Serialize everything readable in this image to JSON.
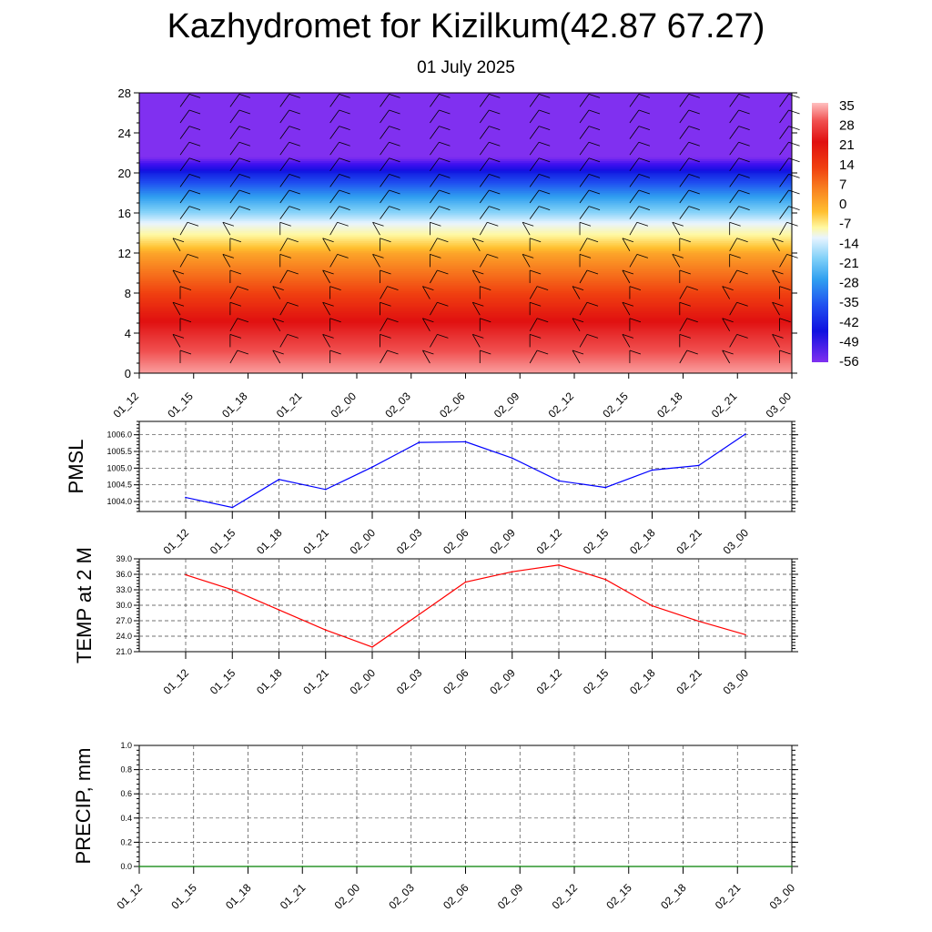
{
  "title": "Kazhydromet for Kizilkum(42.87 67.27)",
  "subtitle": "01 July 2025",
  "chart_data": [
    {
      "type": "heatmap",
      "description_label": "",
      "yticks": [
        "0",
        "4",
        "8",
        "12",
        "16",
        "20",
        "24",
        "28"
      ],
      "ylim": [
        0,
        28
      ],
      "x_ticks": [
        "01_12",
        "01_15",
        "01_18",
        "01_21",
        "02_00",
        "02_03",
        "02_06",
        "02_09",
        "02_12",
        "02_15",
        "02_18",
        "02_21",
        "03_00"
      ],
      "colorbar_labels": [
        "35",
        "28",
        "21",
        "14",
        "7",
        "0",
        "-7",
        "-14",
        "-21",
        "-28",
        "-35",
        "-42",
        "-49",
        "-56"
      ],
      "colorbar_colors": [
        "#ffc0c0",
        "#f05050",
        "#e01010",
        "#f04010",
        "#f88020",
        "#ffc030",
        "#fff8a0",
        "#e8f4ff",
        "#80d0f8",
        "#30a0f0",
        "#2050f0",
        "#1010e0",
        "#4010f0",
        "#8030f0"
      ],
      "temperature_profile": [
        {
          "height": 0,
          "temp": 33
        },
        {
          "height": 4,
          "temp": 24
        },
        {
          "height": 8,
          "temp": 14
        },
        {
          "height": 12,
          "temp": 3
        },
        {
          "height": 14,
          "temp": -8
        },
        {
          "height": 16,
          "temp": -20
        },
        {
          "height": 20,
          "temp": -40
        },
        {
          "height": 21.5,
          "temp": -55
        },
        {
          "height": 22.5,
          "temp": -60
        },
        {
          "height": 28,
          "temp": -62
        }
      ]
    },
    {
      "type": "line",
      "ylabel": "PMSL",
      "categories": [
        "01_12",
        "01_15",
        "01_18",
        "01_21",
        "02_00",
        "02_03",
        "02_06",
        "02_09",
        "02_12",
        "02_15",
        "02_18",
        "02_21",
        "03_00"
      ],
      "values": [
        1004.12,
        1003.82,
        1004.66,
        1004.36,
        1005.03,
        1005.77,
        1005.79,
        1005.3,
        1004.62,
        1004.42,
        1004.94,
        1005.08,
        1006.02
      ],
      "yticks": [
        "1004.0",
        "1004.5",
        "1005.0",
        "1005.5",
        "1006.0"
      ],
      "ylim": [
        1003.7,
        1006.4
      ],
      "color": "#0000ff",
      "grid": true
    },
    {
      "type": "line",
      "ylabel": "TEMP at 2 M",
      "categories": [
        "01_12",
        "01_15",
        "01_18",
        "01_21",
        "02_00",
        "02_03",
        "02_06",
        "02_09",
        "02_12",
        "02_15",
        "02_18",
        "02_21",
        "03_00"
      ],
      "values": [
        35.9,
        33.0,
        29.1,
        25.2,
        21.9,
        28.2,
        34.5,
        36.5,
        37.8,
        35.0,
        29.9,
        26.9,
        24.3
      ],
      "yticks": [
        "21.0",
        "24.0",
        "27.0",
        "30.0",
        "33.0",
        "36.0",
        "39.0"
      ],
      "ylim": [
        21,
        39
      ],
      "color": "#ff0000",
      "grid": true
    },
    {
      "type": "line",
      "ylabel": "PRECIP, mm",
      "categories": [
        "01_12",
        "01_15",
        "01_18",
        "01_21",
        "02_00",
        "02_03",
        "02_06",
        "02_09",
        "02_12",
        "02_15",
        "02_18",
        "02_21",
        "03_00"
      ],
      "values": [
        0,
        0,
        0,
        0,
        0,
        0,
        0,
        0,
        0,
        0,
        0,
        0,
        0
      ],
      "yticks": [
        "0.0",
        "0.2",
        "0.4",
        "0.6",
        "0.8",
        "1.0"
      ],
      "ylim": [
        0,
        1
      ],
      "color": "#008000",
      "grid": true
    }
  ]
}
